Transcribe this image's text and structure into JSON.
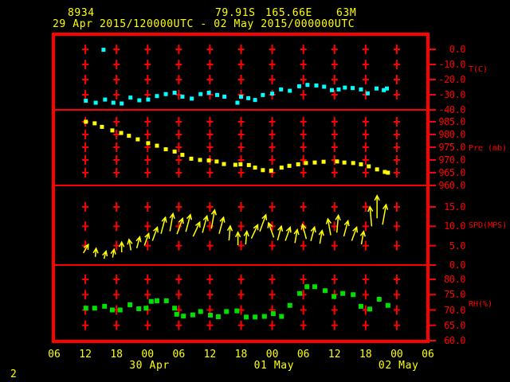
{
  "header": {
    "station_id": "8934",
    "latitude": "79.91S",
    "longitude": "165.66E",
    "elevation": "63M",
    "period": "29 Apr 2015/120000UTC - 02 May 2015/000000UTC"
  },
  "footer": {
    "page_number": "2"
  },
  "colors": {
    "background": "#000000",
    "frame": "#ff0000",
    "grid": "#ff0000",
    "axis_text": "#ff0000",
    "time_text": "#ffff00",
    "temperature": "#00ffff",
    "pressure": "#ffff00",
    "wind": "#ffff00",
    "humidity": "#00e000"
  },
  "x_axis": {
    "description": "hours since 29 Apr 2015 0600UTC",
    "range_hours": [
      0,
      72
    ],
    "tick_interval_hours": 6,
    "grid_hours": [
      6,
      12,
      18,
      24,
      30,
      36,
      42,
      48,
      54,
      60,
      66
    ],
    "hour_labels": [
      {
        "h": 0,
        "label": "06"
      },
      {
        "h": 6,
        "label": "12"
      },
      {
        "h": 12,
        "label": "18"
      },
      {
        "h": 18,
        "label": "00"
      },
      {
        "h": 24,
        "label": "06"
      },
      {
        "h": 30,
        "label": "12"
      },
      {
        "h": 36,
        "label": "18"
      },
      {
        "h": 42,
        "label": "00"
      },
      {
        "h": 48,
        "label": "06"
      },
      {
        "h": 54,
        "label": "12"
      },
      {
        "h": 60,
        "label": "18"
      },
      {
        "h": 66,
        "label": "00"
      },
      {
        "h": 72,
        "label": "06"
      }
    ],
    "date_labels": [
      {
        "h": 18,
        "label": "30 Apr"
      },
      {
        "h": 42,
        "label": "01 May"
      },
      {
        "h": 66,
        "label": "02 May"
      }
    ]
  },
  "chart_data": [
    {
      "id": "temperature",
      "type": "scatter",
      "title": "T(C)",
      "color": "#00ffff",
      "axis": {
        "min": -40,
        "max": 0,
        "tick_labels": [
          "0.0",
          "-10.0",
          "-20.0",
          "-30.0",
          "-40.0"
        ],
        "tick_values": [
          0,
          -10,
          -20,
          -30,
          -40
        ],
        "grid_values": [
          0,
          -10,
          -20,
          -30
        ]
      },
      "points": [
        [
          6.1,
          -34
        ],
        [
          8,
          -35.3
        ],
        [
          9.5,
          -0.3
        ],
        [
          9.8,
          -33.2
        ],
        [
          11.4,
          -35.3
        ],
        [
          13,
          -35.8
        ],
        [
          14.7,
          -31.9
        ],
        [
          16.4,
          -33.7
        ],
        [
          18.1,
          -33.2
        ],
        [
          19.8,
          -30.9
        ],
        [
          21.5,
          -29.6
        ],
        [
          23.2,
          -28.7
        ],
        [
          24.7,
          -31.3
        ],
        [
          26.5,
          -32.6
        ],
        [
          28.2,
          -29.6
        ],
        [
          29.8,
          -28.7
        ],
        [
          31.4,
          -30.2
        ],
        [
          32.8,
          -31.3
        ],
        [
          35.3,
          -35.3
        ],
        [
          36,
          -31.3
        ],
        [
          37.4,
          -32.3
        ],
        [
          38.7,
          -33.5
        ],
        [
          40.2,
          -30.2
        ],
        [
          42,
          -29.3
        ],
        [
          43.7,
          -26.5
        ],
        [
          45.4,
          -27.4
        ],
        [
          47.2,
          -24.4
        ],
        [
          48.8,
          -23.5
        ],
        [
          50.5,
          -23.9
        ],
        [
          52,
          -24.7
        ],
        [
          53.5,
          -27
        ],
        [
          54.8,
          -26.5
        ],
        [
          56,
          -25.3
        ],
        [
          57.5,
          -25.6
        ],
        [
          59.1,
          -26.5
        ],
        [
          60.4,
          -29.1
        ],
        [
          62.1,
          -25.9
        ],
        [
          63.5,
          -27
        ],
        [
          64.1,
          -25.9
        ]
      ]
    },
    {
      "id": "pressure",
      "type": "scatter",
      "title": "Pre (mb)",
      "color": "#ffff00",
      "axis": {
        "min": 960,
        "max": 985,
        "tick_labels": [
          "985.0",
          "980.0",
          "975.0",
          "970.0",
          "965.0",
          "960.0"
        ],
        "tick_values": [
          985,
          980,
          975,
          970,
          965,
          960
        ],
        "grid_values": [
          985,
          980,
          975,
          970,
          965
        ]
      },
      "points": [
        [
          6.1,
          985
        ],
        [
          7.8,
          984.4
        ],
        [
          9.2,
          983
        ],
        [
          11.2,
          981.6
        ],
        [
          12.9,
          980.6
        ],
        [
          14.4,
          979.5
        ],
        [
          16.1,
          978.1
        ],
        [
          18.1,
          976.6
        ],
        [
          19.8,
          975.6
        ],
        [
          21.5,
          974.2
        ],
        [
          23.2,
          973.3
        ],
        [
          24.7,
          972
        ],
        [
          26.4,
          970.5
        ],
        [
          28.1,
          970
        ],
        [
          29.8,
          969.8
        ],
        [
          31.3,
          969.4
        ],
        [
          32.7,
          968.4
        ],
        [
          34.9,
          968.1
        ],
        [
          35.9,
          968.3
        ],
        [
          37.5,
          968
        ],
        [
          38.7,
          967
        ],
        [
          40.2,
          966
        ],
        [
          41.8,
          965.8
        ],
        [
          43.8,
          967
        ],
        [
          45.3,
          967.7
        ],
        [
          47,
          968.3
        ],
        [
          48.5,
          968.8
        ],
        [
          50.2,
          969
        ],
        [
          51.9,
          969.3
        ],
        [
          54.5,
          969.4
        ],
        [
          55.9,
          969
        ],
        [
          57.6,
          968.8
        ],
        [
          59.1,
          968.3
        ],
        [
          60.6,
          967.5
        ],
        [
          62.2,
          966.3
        ],
        [
          63.7,
          965.3
        ],
        [
          64.3,
          965
        ]
      ]
    },
    {
      "id": "wind",
      "type": "wind-arrows",
      "title": "SPD(MPS)",
      "color": "#ffff00",
      "axis": {
        "min": 0,
        "max": 15,
        "tick_labels": [
          "15.0",
          "10.0",
          "5.0",
          "0.0"
        ],
        "tick_values": [
          15,
          10,
          5,
          0
        ],
        "grid_values": [
          15,
          10,
          5
        ]
      },
      "points_format": [
        "hours",
        "speed_mps",
        "direction_deg_from_up"
      ],
      "points": [
        [
          6.1,
          4.2,
          30
        ],
        [
          8,
          3.2,
          5
        ],
        [
          9.8,
          2.6,
          15
        ],
        [
          11.4,
          3.0,
          10
        ],
        [
          13,
          4.6,
          0
        ],
        [
          14.6,
          5.2,
          -10
        ],
        [
          16.2,
          5.8,
          15
        ],
        [
          17.8,
          6.6,
          20
        ],
        [
          19.4,
          8.0,
          20
        ],
        [
          21,
          10.2,
          15
        ],
        [
          22.6,
          11.0,
          10
        ],
        [
          24.2,
          10.0,
          20
        ],
        [
          25.8,
          10.8,
          15
        ],
        [
          27.4,
          9.2,
          25
        ],
        [
          29,
          10.5,
          15
        ],
        [
          30.6,
          11.8,
          10
        ],
        [
          32.2,
          10.2,
          15
        ],
        [
          33.8,
          8.2,
          5
        ],
        [
          35.4,
          6.8,
          0
        ],
        [
          37,
          7.0,
          5
        ],
        [
          38.6,
          8.6,
          25
        ],
        [
          40.2,
          10.8,
          20
        ],
        [
          41.8,
          9.0,
          -20
        ],
        [
          43.4,
          8.2,
          15
        ],
        [
          45,
          8.0,
          20
        ],
        [
          46.6,
          7.4,
          10
        ],
        [
          48.2,
          8.6,
          -15
        ],
        [
          49.8,
          8.0,
          15
        ],
        [
          51.4,
          7.2,
          10
        ],
        [
          53,
          9.8,
          -10
        ],
        [
          54.6,
          10.6,
          5
        ],
        [
          56.2,
          9.4,
          15
        ],
        [
          57.8,
          8.0,
          20
        ],
        [
          59.4,
          7.0,
          10
        ],
        [
          61,
          12.5,
          -5
        ],
        [
          62.2,
          15.0,
          0
        ],
        [
          63.6,
          13.0,
          10
        ]
      ]
    },
    {
      "id": "humidity",
      "type": "scatter",
      "title": "RH(%)",
      "color": "#00e000",
      "axis": {
        "min": 60,
        "max": 80,
        "tick_labels": [
          "80.0",
          "75.0",
          "70.0",
          "65.0",
          "60.0"
        ],
        "tick_values": [
          80,
          75,
          70,
          65,
          60
        ],
        "grid_values": [
          80,
          75,
          70,
          65
        ]
      },
      "points": [
        [
          6.1,
          70.6
        ],
        [
          7.8,
          70.6
        ],
        [
          9.7,
          71.2
        ],
        [
          11.2,
          70
        ],
        [
          12.7,
          70
        ],
        [
          14.6,
          71.7
        ],
        [
          16.3,
          70.4
        ],
        [
          17.7,
          70.6
        ],
        [
          18.7,
          72.8
        ],
        [
          19.8,
          73
        ],
        [
          21.6,
          73
        ],
        [
          23.2,
          70.6
        ],
        [
          23.6,
          68.6
        ],
        [
          24.9,
          68
        ],
        [
          26.7,
          68.4
        ],
        [
          28.2,
          69.5
        ],
        [
          30.1,
          68.3
        ],
        [
          31.6,
          67.8
        ],
        [
          33.2,
          69.5
        ],
        [
          35.2,
          69.7
        ],
        [
          37,
          67.7
        ],
        [
          38.7,
          67.7
        ],
        [
          40.5,
          67.9
        ],
        [
          42.2,
          68.8
        ],
        [
          43.8,
          67.9
        ],
        [
          45.4,
          71.5
        ],
        [
          47.3,
          75.4
        ],
        [
          48.7,
          77.6
        ],
        [
          50.2,
          77.6
        ],
        [
          52.2,
          76.3
        ],
        [
          53.9,
          74.4
        ],
        [
          55.6,
          75.4
        ],
        [
          57.6,
          75
        ],
        [
          59.1,
          71.2
        ],
        [
          60.8,
          70.3
        ],
        [
          62.6,
          73.5
        ],
        [
          64.3,
          71.5
        ]
      ]
    }
  ]
}
